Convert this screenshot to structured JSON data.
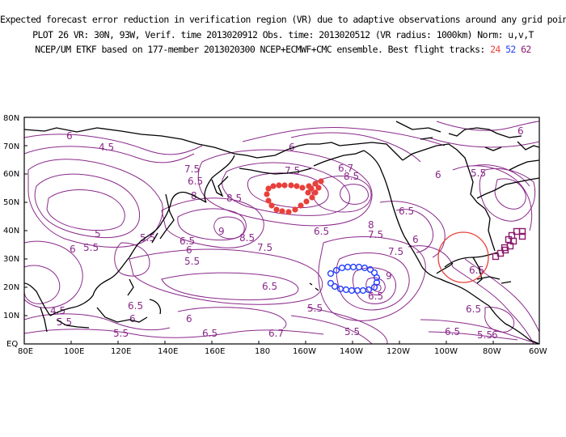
{
  "header": {
    "line1": "Expected forecast error reduction in verification region (VR) due to adaptive observations around any grid point.",
    "line2": "PLOT 26 VR: 30N, 93W, Verif. time 2013020912 Obs. time: 2013020512 (VR radius: 1000km) Norm: u,v,T",
    "line3": "NCEP/UM ETKF based on 177-member 2013020300 NCEP+ECMWF+CMC ensemble. Best flight tracks:",
    "track_ids": [
      "24",
      "52",
      "62"
    ]
  },
  "map": {
    "lat_labels": [
      "80N",
      "70N",
      "60N",
      "50N",
      "40N",
      "30N",
      "20N",
      "10N",
      "EQ"
    ],
    "lon_labels": [
      "80E",
      "100E",
      "120E",
      "140E",
      "160E",
      "180",
      "160W",
      "140W",
      "120W",
      "100W",
      "80W",
      "60W"
    ],
    "contour_labels": [
      "4.5",
      "6",
      "6.5",
      "7.5",
      "8",
      "8.5",
      "9",
      "5",
      "5.5",
      "6.7"
    ],
    "colors": {
      "contour": "#8a2a8a",
      "coast": "#000000",
      "track24": "#e8403a",
      "track52": "#2440ff",
      "track62": "#8b1a6b",
      "verification_circle": "#e8403a"
    }
  }
}
